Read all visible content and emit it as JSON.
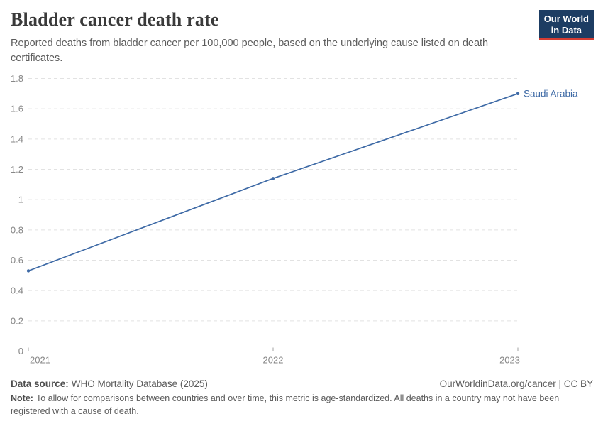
{
  "header": {
    "title": "Bladder cancer death rate",
    "subtitle": "Reported deaths from bladder cancer per 100,000 people, based on the underlying cause listed on death certificates.",
    "logo": {
      "line1": "Our World",
      "line2": "in Data"
    }
  },
  "chart_data": {
    "type": "line",
    "title": "Bladder cancer death rate",
    "x": [
      2021,
      2022,
      2023
    ],
    "x_tick_labels": [
      "2021",
      "2022",
      "2023"
    ],
    "series": [
      {
        "name": "Saudi Arabia",
        "values": [
          0.53,
          1.14,
          1.7
        ]
      }
    ],
    "ylim": [
      0,
      1.8
    ],
    "ytick_step": 0.2,
    "y_tick_labels": [
      "0",
      "0.2",
      "0.4",
      "0.6",
      "0.8",
      "1",
      "1.2",
      "1.4",
      "1.6",
      "1.8"
    ],
    "xlabel": "",
    "ylabel": "",
    "grid": "horizontal-dashed",
    "legend_position": "end-of-line-label"
  },
  "footer": {
    "datasource_label": "Data source:",
    "datasource_value": "WHO Mortality Database (2025)",
    "link": "OurWorldinData.org/cancer | CC BY",
    "note_label": "Note:",
    "note_value": "To allow for comparisons between countries and over time, this metric is age-standardized. All deaths in a country may not have been registered with a cause of death."
  },
  "colors": {
    "line": "#3e6aa6",
    "gridline": "#e2e2e2",
    "axis": "#a3a3a3",
    "tick_label": "#878787",
    "logo_bg": "#1d3d63",
    "logo_red": "#d43d33"
  }
}
